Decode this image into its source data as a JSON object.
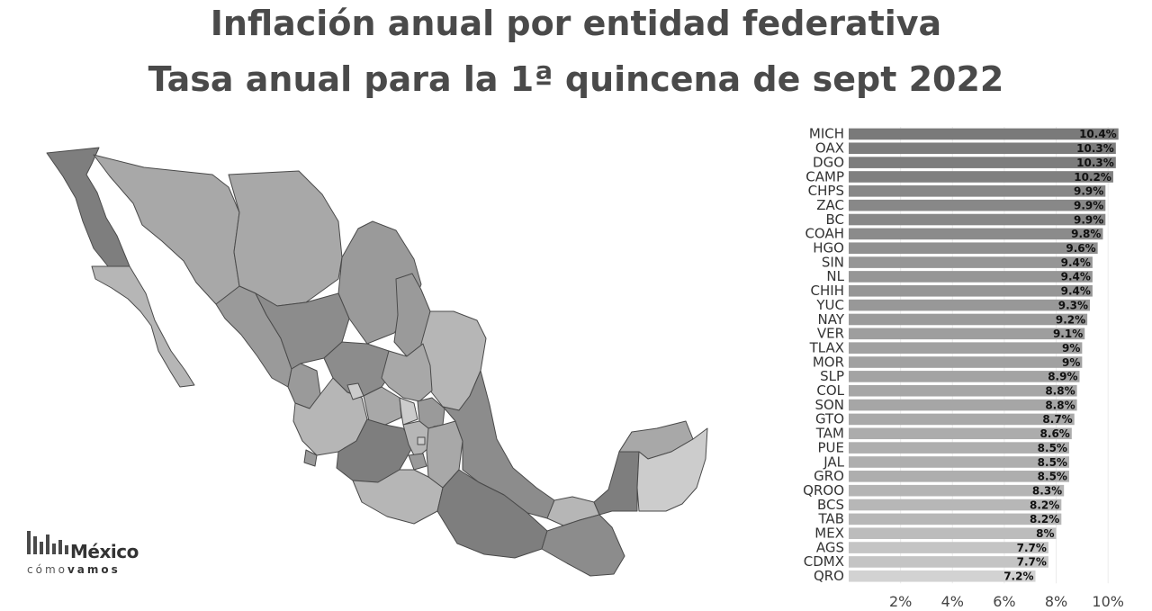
{
  "chart_data": {
    "type": "bar",
    "title": "Inflación anual por entidad federativa",
    "subtitle": "Tasa anual para la 1ª quincena de sept 2022",
    "orientation": "horizontal",
    "categories": [
      "MICH",
      "OAX",
      "DGO",
      "CAMP",
      "CHPS",
      "ZAC",
      "BC",
      "COAH",
      "HGO",
      "SIN",
      "NL",
      "CHIH",
      "YUC",
      "NAY",
      "VER",
      "TLAX",
      "MOR",
      "SLP",
      "COL",
      "SON",
      "GTO",
      "TAM",
      "PUE",
      "JAL",
      "GRO",
      "QROO",
      "BCS",
      "TAB",
      "MEX",
      "AGS",
      "CDMX",
      "QRO"
    ],
    "values": [
      10.4,
      10.3,
      10.3,
      10.2,
      9.9,
      9.9,
      9.9,
      9.8,
      9.6,
      9.4,
      9.4,
      9.4,
      9.3,
      9.2,
      9.1,
      9,
      9,
      8.9,
      8.8,
      8.8,
      8.7,
      8.6,
      8.5,
      8.5,
      8.5,
      8.3,
      8.2,
      8.2,
      8,
      7.7,
      7.7,
      7.2
    ],
    "value_labels": [
      "10.4%",
      "10.3%",
      "10.3%",
      "10.2%",
      "9.9%",
      "9.9%",
      "9.9%",
      "9.8%",
      "9.6%",
      "9.4%",
      "9.4%",
      "9.4%",
      "9.3%",
      "9.2%",
      "9.1%",
      "9%",
      "9%",
      "8.9%",
      "8.8%",
      "8.8%",
      "8.7%",
      "8.6%",
      "8.5%",
      "8.5%",
      "8.5%",
      "8.3%",
      "8.2%",
      "8.2%",
      "8%",
      "7.7%",
      "7.7%",
      "7.2%"
    ],
    "x_ticks": [
      2,
      4,
      6,
      8,
      10
    ],
    "x_tick_labels": [
      "2%",
      "4%",
      "6%",
      "8%",
      "10%"
    ],
    "xlim": [
      0,
      11
    ],
    "grid": true,
    "colors": {
      "high": "#7a7a7a",
      "low": "#d2d2d2"
    },
    "map_grays": [
      "#7e7e7e",
      "#8c8c8c",
      "#9a9a9a",
      "#a8a8a8",
      "#b6b6b6",
      "#cccccc"
    ]
  },
  "logo": {
    "word": "México",
    "sub_light": "cómo",
    "sub_bold": "vamos"
  }
}
